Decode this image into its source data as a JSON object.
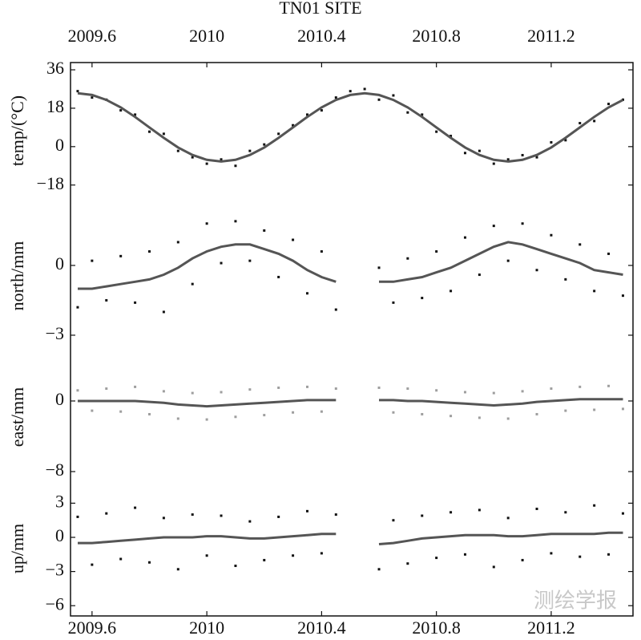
{
  "chart_data": [
    {
      "type": "line",
      "title": "TN01 SITE",
      "ylabel": "temp/(°C)",
      "x": [
        2009.55,
        2009.6,
        2009.65,
        2009.7,
        2009.75,
        2009.8,
        2009.85,
        2009.9,
        2009.95,
        2010.0,
        2010.05,
        2010.1,
        2010.15,
        2010.2,
        2010.25,
        2010.3,
        2010.35,
        2010.4,
        2010.45,
        2010.5,
        2010.55,
        2010.6,
        2010.65,
        2010.7,
        2010.75,
        2010.8,
        2010.85,
        2010.9,
        2010.95,
        2011.0,
        2011.05,
        2011.1,
        2011.15,
        2011.2,
        2011.25,
        2011.3,
        2011.35,
        2011.4,
        2011.45
      ],
      "series": [
        {
          "mode": "markers",
          "color": "#111111",
          "values": [
            26,
            23,
            22,
            17,
            15,
            7,
            6,
            -2,
            -5,
            -8,
            -6,
            -9,
            -2,
            1,
            6,
            10,
            15,
            17,
            23,
            26,
            27,
            22,
            24,
            16,
            15,
            7,
            5,
            -3,
            -2,
            -8,
            -6,
            -4,
            -5,
            2,
            3,
            11,
            12,
            20,
            22
          ]
        },
        {
          "mode": "line",
          "color": "#555555",
          "values": [
            25,
            24.2,
            21.9,
            18.4,
            13.9,
            9,
            4.1,
            -0.4,
            -3.9,
            -6.2,
            -7,
            -6.2,
            -3.9,
            -0.4,
            4.1,
            9,
            13.9,
            18.4,
            21.9,
            24.2,
            25,
            24.2,
            21.9,
            18.4,
            13.9,
            9,
            4.1,
            -0.4,
            -3.9,
            -6.2,
            -7,
            -6.2,
            -3.9,
            -0.4,
            4.1,
            9,
            13.9,
            18.4,
            21.9
          ]
        }
      ],
      "xlim": [
        2009.525,
        2011.485
      ],
      "xticks": [
        2009.6,
        2010.0,
        2010.4,
        2010.8,
        2011.2
      ],
      "xaxis_position": "top",
      "ylim": [
        -24.5,
        39.4
      ],
      "yticks": [
        36,
        18,
        0,
        {
          "value": -18,
          "label": "−18"
        }
      ]
    },
    {
      "type": "line",
      "ylabel": "north/mm",
      "x": [
        2009.55,
        2009.6,
        2009.65,
        2009.7,
        2009.75,
        2009.8,
        2009.85,
        2009.9,
        2009.95,
        2010.0,
        2010.05,
        2010.1,
        2010.15,
        2010.2,
        2010.25,
        2010.3,
        2010.35,
        2010.4,
        2010.45,
        2010.5,
        2010.55,
        2010.6,
        2010.65,
        2010.7,
        2010.75,
        2010.8,
        2010.85,
        2010.9,
        2010.95,
        2011.0,
        2011.05,
        2011.1,
        2011.15,
        2011.2,
        2011.25,
        2011.3,
        2011.35,
        2011.4,
        2011.45
      ],
      "series": [
        {
          "mode": "markers",
          "color": "#111111",
          "values": [
            -1.8,
            0.2,
            -1.5,
            0.4,
            -1.6,
            0.6,
            -2.0,
            1.0,
            -0.8,
            1.8,
            0.1,
            1.9,
            0.2,
            1.5,
            -0.5,
            1.1,
            -1.2,
            0.6,
            -1.9,
            null,
            null,
            -0.1,
            -1.6,
            0.3,
            -1.4,
            0.6,
            -1.1,
            1.2,
            -0.4,
            1.7,
            0.2,
            1.8,
            -0.2,
            1.3,
            -0.6,
            0.9,
            -1.1,
            0.5,
            -1.3
          ]
        },
        {
          "mode": "line",
          "color": "#555555",
          "values": [
            -1.0,
            -1.0,
            -0.9,
            -0.8,
            -0.7,
            -0.6,
            -0.4,
            -0.1,
            0.3,
            0.6,
            0.8,
            0.9,
            0.9,
            0.7,
            0.5,
            0.2,
            -0.2,
            -0.5,
            -0.7,
            null,
            null,
            -0.7,
            -0.7,
            -0.6,
            -0.5,
            -0.3,
            -0.1,
            0.2,
            0.5,
            0.8,
            1.0,
            0.9,
            0.7,
            0.5,
            0.3,
            0.1,
            -0.2,
            -0.3,
            -0.4
          ]
        }
      ],
      "xlim": [
        2009.525,
        2011.485
      ],
      "ylim": [
        -3.76,
        2.86
      ],
      "yticks": [
        0,
        {
          "value": -3,
          "label": "−3"
        }
      ]
    },
    {
      "type": "line",
      "ylabel": "east/mm",
      "x": [
        2009.55,
        2009.6,
        2009.65,
        2009.7,
        2009.75,
        2009.8,
        2009.85,
        2009.9,
        2009.95,
        2010.0,
        2010.05,
        2010.1,
        2010.15,
        2010.2,
        2010.25,
        2010.3,
        2010.35,
        2010.4,
        2010.45,
        2010.5,
        2010.55,
        2010.6,
        2010.65,
        2010.7,
        2010.75,
        2010.8,
        2010.85,
        2010.9,
        2010.95,
        2011.0,
        2011.05,
        2011.1,
        2011.15,
        2011.2,
        2011.25,
        2011.3,
        2011.35,
        2011.4,
        2011.45
      ],
      "series": [
        {
          "mode": "markers",
          "color": "#9e9e9e",
          "values": [
            1.2,
            -1.1,
            1.4,
            -1.2,
            1.6,
            -1.5,
            1.1,
            -2.0,
            0.9,
            -2.1,
            1.0,
            -1.8,
            1.3,
            -1.6,
            1.5,
            -1.3,
            1.6,
            -1.2,
            1.4,
            null,
            null,
            1.5,
            -1.3,
            1.4,
            -1.5,
            1.2,
            -1.7,
            1.0,
            -1.9,
            0.9,
            -2.0,
            1.1,
            -1.5,
            1.4,
            -1.1,
            1.6,
            -1.0,
            1.7,
            -0.9
          ]
        },
        {
          "mode": "line",
          "color": "#555555",
          "values": [
            0,
            0,
            0,
            0,
            0,
            -0.1,
            -0.2,
            -0.4,
            -0.5,
            -0.6,
            -0.5,
            -0.4,
            -0.3,
            -0.2,
            -0.1,
            0,
            0.1,
            0.1,
            0.1,
            null,
            null,
            0.1,
            0.1,
            0,
            0,
            -0.1,
            -0.2,
            -0.3,
            -0.4,
            -0.5,
            -0.4,
            -0.3,
            -0.1,
            0,
            0.1,
            0.2,
            0.2,
            0.2,
            0.2
          ]
        }
      ],
      "xlim": [
        2009.525,
        2011.485
      ],
      "ylim": [
        -9.09,
        5.45
      ],
      "yticks": [
        0,
        {
          "value": -8,
          "label": "−8"
        }
      ]
    },
    {
      "type": "line",
      "ylabel": "up/mm",
      "x": [
        2009.55,
        2009.6,
        2009.65,
        2009.7,
        2009.75,
        2009.8,
        2009.85,
        2009.9,
        2009.95,
        2010.0,
        2010.05,
        2010.1,
        2010.15,
        2010.2,
        2010.25,
        2010.3,
        2010.35,
        2010.4,
        2010.45,
        2010.5,
        2010.55,
        2010.6,
        2010.65,
        2010.7,
        2010.75,
        2010.8,
        2010.85,
        2010.9,
        2010.95,
        2011.0,
        2011.05,
        2011.1,
        2011.15,
        2011.2,
        2011.25,
        2011.3,
        2011.35,
        2011.4,
        2011.45
      ],
      "series": [
        {
          "mode": "markers",
          "color": "#111111",
          "values": [
            1.8,
            -2.4,
            2.1,
            -1.9,
            2.6,
            -2.2,
            1.7,
            -2.8,
            2.0,
            -1.6,
            1.9,
            -2.5,
            1.4,
            -2.0,
            1.8,
            -1.6,
            2.3,
            -1.4,
            2.0,
            null,
            null,
            -2.8,
            1.5,
            -2.3,
            1.9,
            -1.8,
            2.2,
            -1.5,
            2.4,
            -2.6,
            1.7,
            -2.0,
            2.5,
            -1.4,
            2.2,
            -1.7,
            2.8,
            -1.5,
            2.1
          ]
        },
        {
          "mode": "line",
          "color": "#555555",
          "values": [
            -0.5,
            -0.5,
            -0.4,
            -0.3,
            -0.2,
            -0.1,
            0,
            0,
            0,
            0.1,
            0.1,
            0,
            -0.1,
            -0.1,
            0,
            0.1,
            0.2,
            0.3,
            0.3,
            null,
            null,
            -0.6,
            -0.5,
            -0.3,
            -0.1,
            0,
            0.1,
            0.2,
            0.2,
            0.2,
            0.1,
            0.1,
            0.2,
            0.3,
            0.3,
            0.3,
            0.3,
            0.4,
            0.4
          ]
        }
      ],
      "xlim": [
        2009.525,
        2011.485
      ],
      "xticks": [
        2009.6,
        2010.0,
        2010.4,
        2010.8,
        2011.2
      ],
      "xaxis_position": "bottom",
      "ylim": [
        -6.9,
        4.93
      ],
      "yticks": [
        3,
        0,
        {
          "value": -3,
          "label": "−3"
        },
        {
          "value": -6,
          "label": "−6"
        }
      ]
    }
  ],
  "watermark": "测绘学报"
}
